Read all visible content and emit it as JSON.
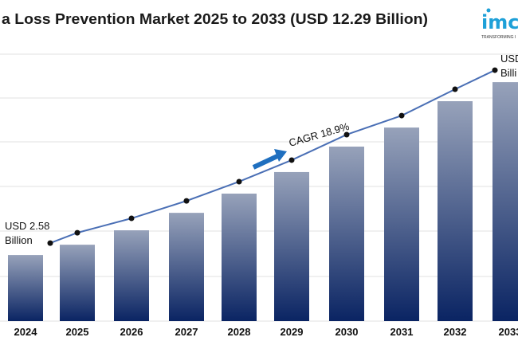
{
  "chart_data": {
    "type": "bar",
    "title": "a Loss Prevention Market 2025 to 2033 (USD 12.29 Billion)",
    "xlabel": "",
    "ylabel": "",
    "categories": [
      "2024",
      "2025",
      "2026",
      "2027",
      "2028",
      "2029",
      "2030",
      "2031",
      "2032",
      "2033"
    ],
    "values": [
      2.58,
      3.16,
      3.97,
      4.95,
      6.03,
      7.24,
      8.67,
      9.74,
      11.22,
      12.29
    ],
    "ylim": [
      -1.13,
      13.86
    ],
    "grid": true,
    "overlay": "line with markers following bar tops",
    "annotations": {
      "start_line1": "USD 2.58",
      "start_line2": "Billion",
      "end_line1": "USD",
      "end_line2": "Billi",
      "cagr": "CAGR 18.9%"
    },
    "colors": {
      "bar_top": "#97a2ba",
      "bar_bottom": "#0a2463",
      "line": "#4a6fb5",
      "arrow": "#1f6fbf",
      "marker": "#111111"
    }
  },
  "logo": {
    "text": "imc",
    "tagline": "TRANSFORMING I"
  }
}
